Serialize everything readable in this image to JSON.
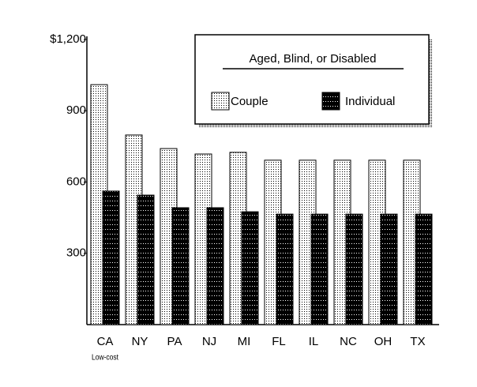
{
  "chart_data": {
    "type": "bar",
    "categories": [
      "CA",
      "NY",
      "PA",
      "NJ",
      "MI",
      "FL",
      "IL",
      "NC",
      "OH",
      "TX"
    ],
    "category_note": "Low-cost",
    "series": [
      {
        "name": "Couple",
        "color": "#ffffff",
        "values": [
          1010,
          798,
          741,
          718,
          725,
          692,
          692,
          692,
          692,
          692
        ]
      },
      {
        "name": "Individual",
        "color": "#000000",
        "values": [
          562,
          545,
          492,
          492,
          475,
          465,
          465,
          465,
          465,
          465
        ]
      }
    ],
    "legend_title": "Aged, Blind, or Disabled",
    "legend": "upper right",
    "ylim": [
      0,
      1200
    ],
    "yticks": [
      300,
      600,
      900,
      {
        "value": 1200,
        "label": "$1,200"
      }
    ]
  }
}
